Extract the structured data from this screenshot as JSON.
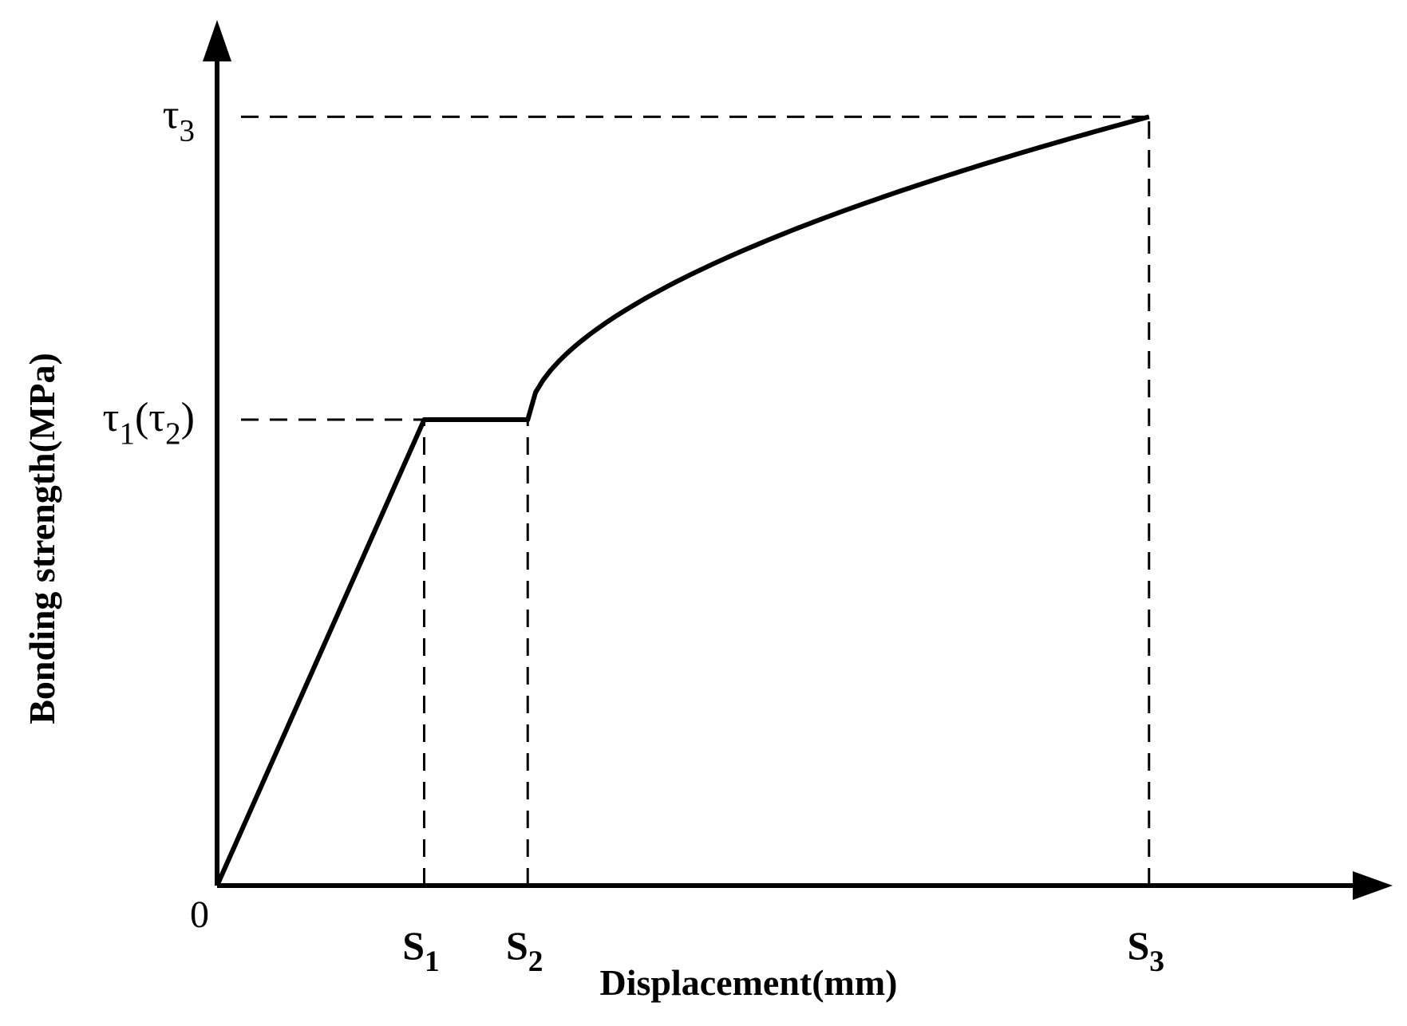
{
  "chart_data": {
    "type": "line",
    "title": "",
    "xlabel": "Displacement(mm)",
    "ylabel": "Bonding strength(MPa)",
    "origin_label": "0",
    "x_tick_labels": [
      {
        "base": "S",
        "sub": "1"
      },
      {
        "base": "S",
        "sub": "2"
      },
      {
        "base": "S",
        "sub": "3"
      }
    ],
    "y_tick_labels": [
      {
        "parts": [
          {
            "text": "τ"
          },
          {
            "text": "1",
            "sub": true
          },
          {
            "text": "(τ"
          },
          {
            "text": "2",
            "sub": true
          },
          {
            "text": ")"
          }
        ]
      },
      {
        "parts": [
          {
            "text": "τ"
          },
          {
            "text": "3",
            "sub": true
          }
        ]
      }
    ],
    "x_ticks": [
      1.0,
      1.5,
      4.5
    ],
    "y_ticks": [
      1.0,
      1.65
    ],
    "xlim": [
      0,
      6.5
    ],
    "ylim": [
      0,
      2.3
    ],
    "grid": false,
    "curve": {
      "segments": [
        {
          "kind": "linear",
          "points": [
            [
              0,
              0
            ],
            [
              1.0,
              1.0
            ]
          ]
        },
        {
          "kind": "linear",
          "points": [
            [
              1.0,
              1.0
            ],
            [
              1.5,
              1.0
            ]
          ]
        },
        {
          "kind": "softening",
          "points": [
            [
              1.5,
              1.0
            ],
            [
              4.5,
              1.65
            ]
          ],
          "exponent": 0.55
        }
      ]
    },
    "colors": {
      "curve": "#000000",
      "axes": "#000000",
      "guides": "#000000"
    }
  }
}
